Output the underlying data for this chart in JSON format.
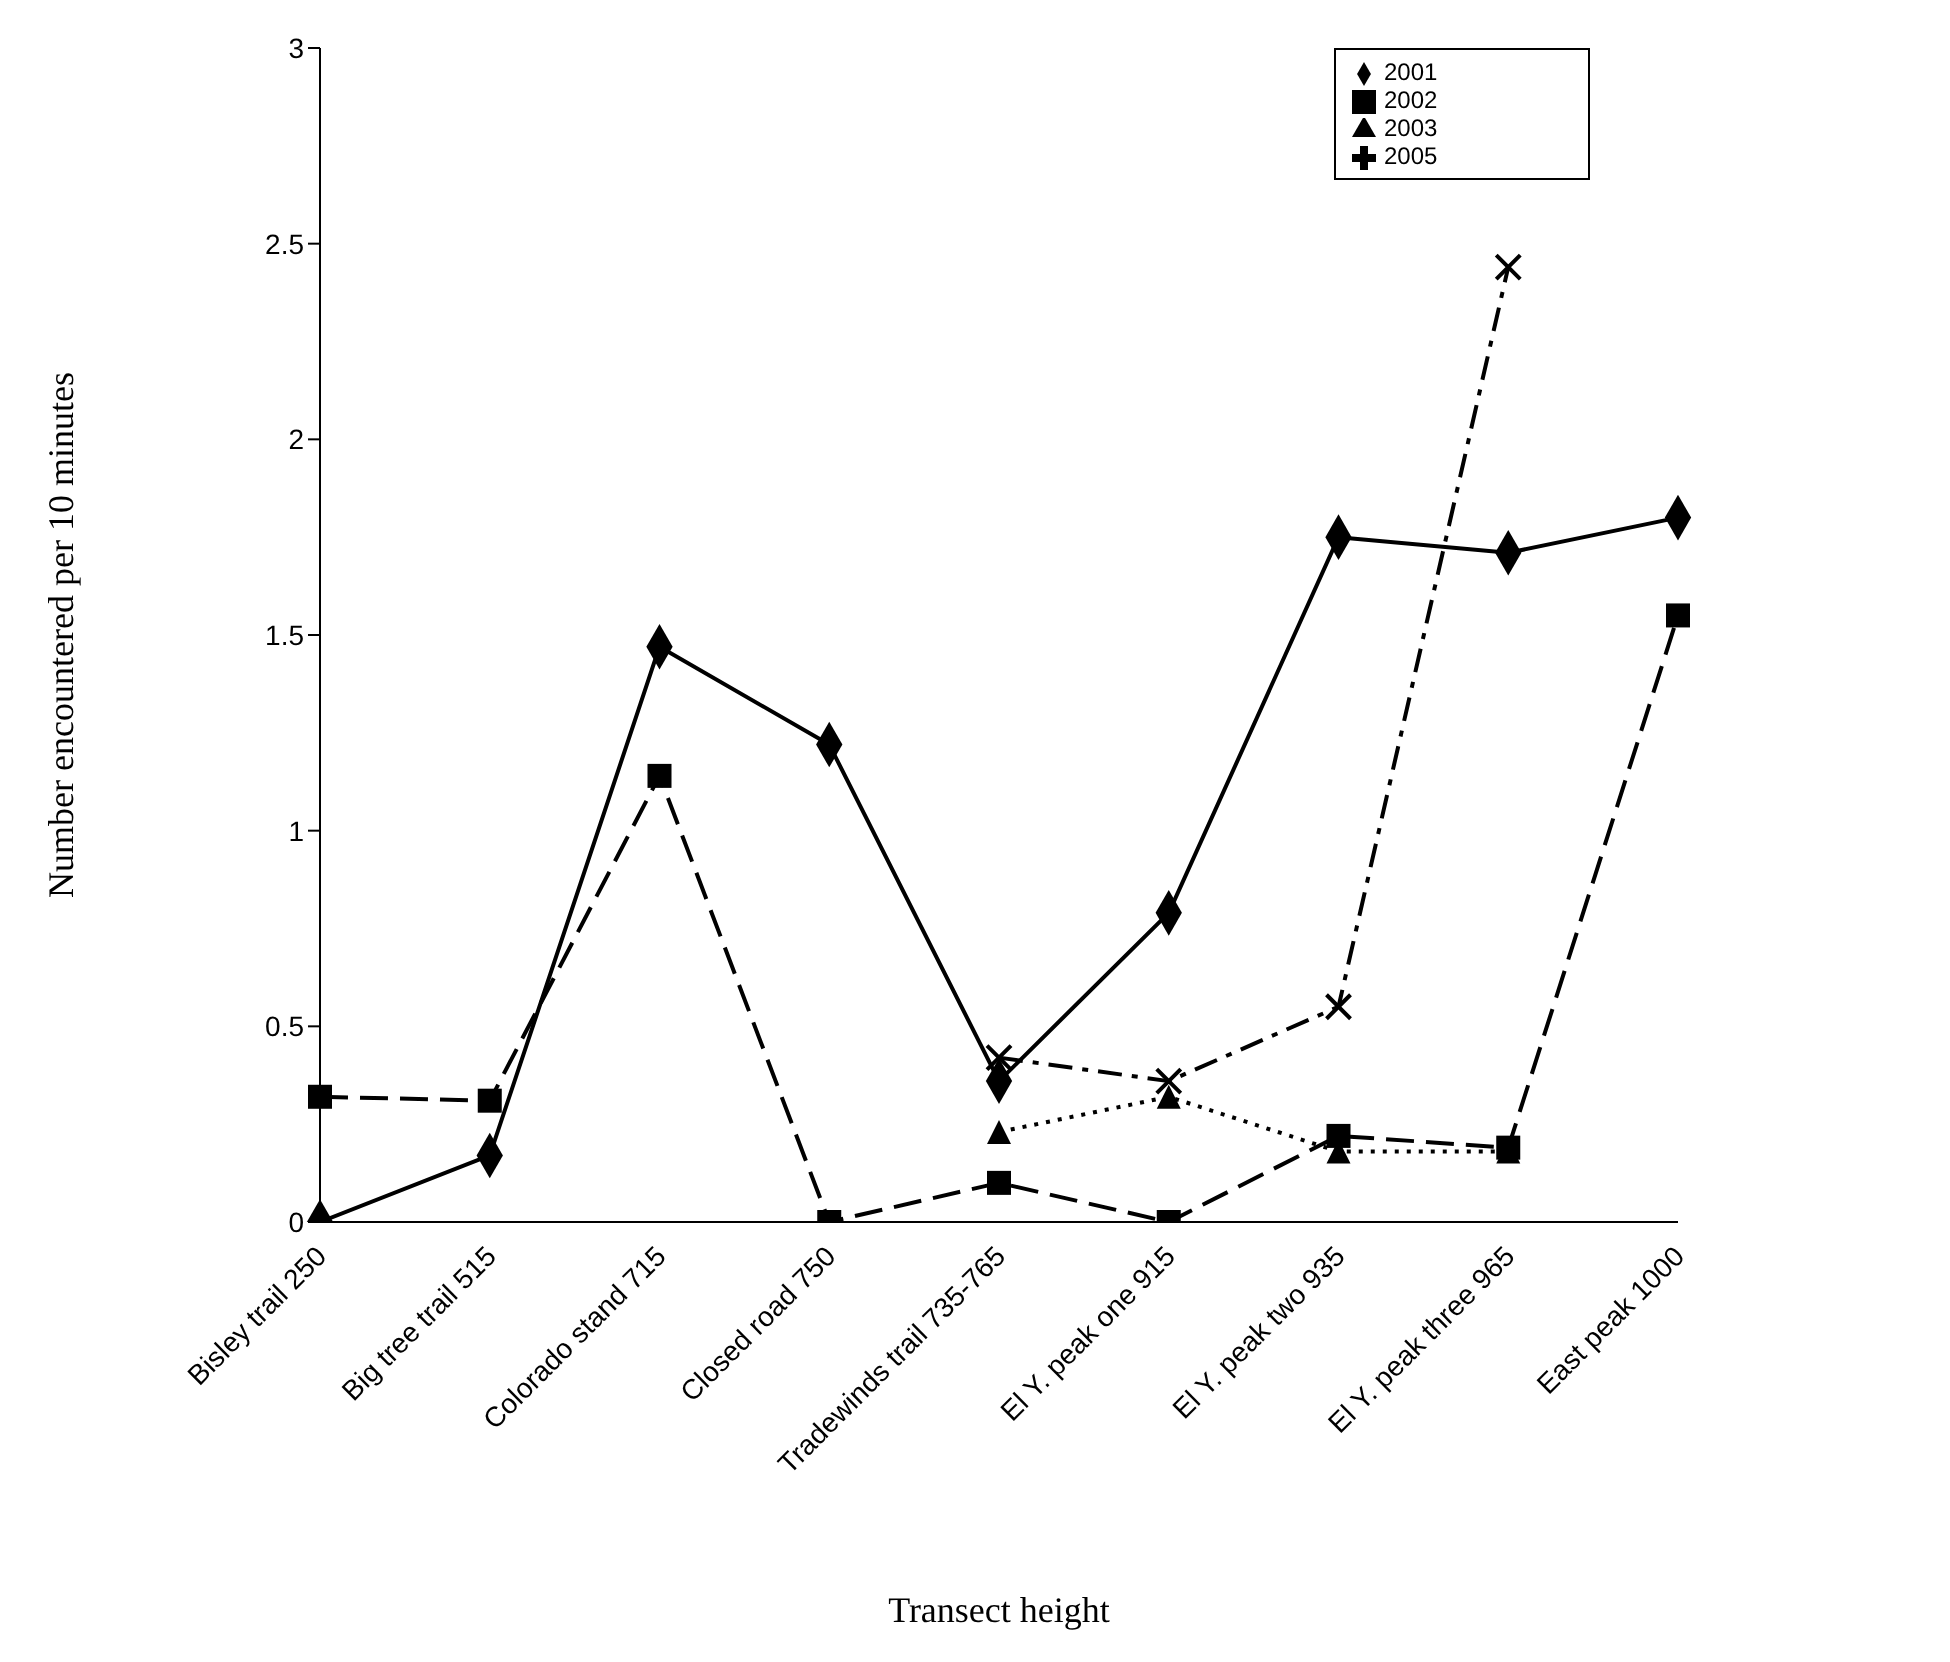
{
  "chart_data": {
    "type": "line",
    "xlabel": "Transect height",
    "ylabel": "Number encountered per 10 minutes",
    "categories": [
      "Bisley trail 250",
      "Big tree trail 515",
      "Colorado stand 715",
      "Closed road 750",
      "Tradewinds trail 735-765",
      "El Y. peak one 915",
      "El Y. peak two 935",
      "El Y. peak three 965",
      "East peak 1000"
    ],
    "series": [
      {
        "name": "2001",
        "color": "#000000",
        "marker": "diamond",
        "line_style": "solid",
        "values": [
          0,
          0.17,
          1.47,
          1.22,
          0.36,
          0.79,
          1.75,
          1.71,
          1.8
        ]
      },
      {
        "name": "2002",
        "color": "#000000",
        "marker": "square",
        "line_style": "dashed",
        "values": [
          0.32,
          0.31,
          1.14,
          0,
          0.1,
          0,
          0.22,
          0.19,
          1.55
        ]
      },
      {
        "name": "2003",
        "color": "#000000",
        "marker": "triangle",
        "line_style": "dotted",
        "values": [
          null,
          null,
          null,
          null,
          0.23,
          0.32,
          0.18,
          0.18,
          null
        ]
      },
      {
        "name": "2005",
        "color": "#000000",
        "marker": "cross",
        "line_style": "dashdot",
        "values": [
          null,
          null,
          null,
          null,
          0.42,
          0.36,
          0.55,
          2.44,
          null
        ]
      }
    ],
    "ylim": [
      0,
      3
    ],
    "yticks": [
      0,
      0.5,
      1,
      1.5,
      2,
      2.5,
      3
    ],
    "grid": false,
    "legend": "top right"
  }
}
